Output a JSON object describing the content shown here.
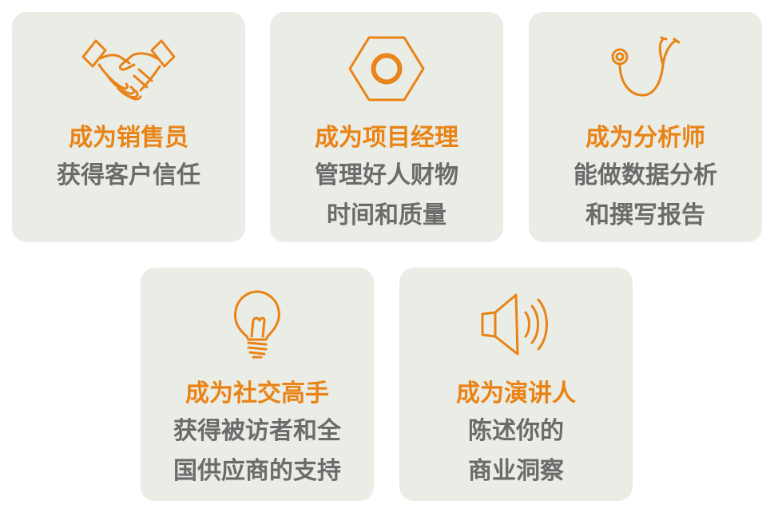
{
  "colors": {
    "card_background": "#eaede6",
    "accent": "#e98316",
    "body_text": "#6b6b6b"
  },
  "cards": [
    {
      "icon": "handshake-icon",
      "title": "成为销售员",
      "lines": [
        "获得客户信任"
      ]
    },
    {
      "icon": "hex-nut-icon",
      "title": "成为项目经理",
      "lines": [
        "管理好人财物",
        "时间和质量"
      ]
    },
    {
      "icon": "stethoscope-icon",
      "title": "成为分析师",
      "lines": [
        "能做数据分析",
        "和撰写报告"
      ]
    },
    {
      "icon": "light-bulb-icon",
      "title": "成为社交高手",
      "lines": [
        "获得被访者和全",
        "国供应商的支持"
      ]
    },
    {
      "icon": "speaker-icon",
      "title": "成为演讲人",
      "lines": [
        "陈述你的",
        "商业洞察"
      ]
    }
  ]
}
